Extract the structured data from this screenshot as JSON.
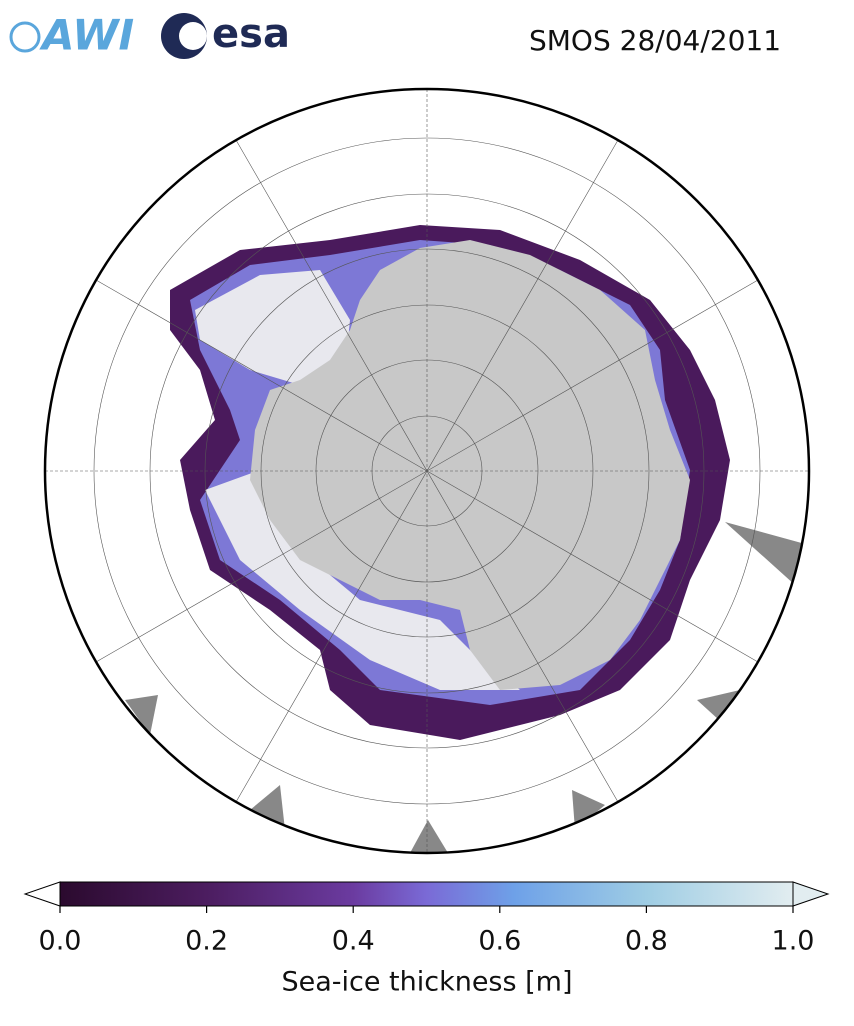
{
  "logos": [
    "AWI",
    "esa"
  ],
  "title": "SMOS 28/04/2011",
  "colorbar": {
    "label": "Sea-ice thickness [m]",
    "range": [
      0,
      1
    ],
    "ticks": [
      {
        "value": 0,
        "label": "0.0"
      },
      {
        "value": 0.2,
        "label": "0.2"
      },
      {
        "value": 0.4,
        "label": "0.4"
      },
      {
        "value": 0.6,
        "label": "0.6"
      },
      {
        "value": 0.8,
        "label": "0.8"
      },
      {
        "value": 1,
        "label": "1.0"
      }
    ]
  }
}
